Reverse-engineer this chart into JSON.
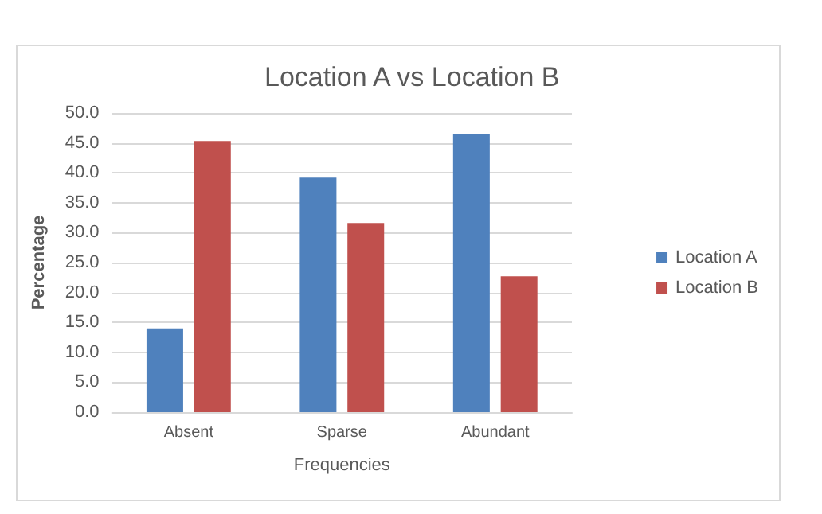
{
  "chart_data": {
    "type": "bar",
    "title": "Location A vs Location B",
    "xlabel": "Frequencies",
    "ylabel": "Percentage",
    "categories": [
      "Absent",
      "Sparse",
      "Abundant"
    ],
    "series": [
      {
        "name": "Location A",
        "color": "#4f81bd",
        "values": [
          14.0,
          39.2,
          46.5
        ]
      },
      {
        "name": "Location B",
        "color": "#c0504d",
        "values": [
          45.3,
          31.6,
          22.7
        ]
      }
    ],
    "ylim": [
      0,
      50
    ],
    "yticks": [
      {
        "value": 0,
        "label": "0.0"
      },
      {
        "value": 5,
        "label": "5.0"
      },
      {
        "value": 10,
        "label": "10.0"
      },
      {
        "value": 15,
        "label": "15.0"
      },
      {
        "value": 20,
        "label": "20.0"
      },
      {
        "value": 25,
        "label": "25.0"
      },
      {
        "value": 30,
        "label": "30.0"
      },
      {
        "value": 35,
        "label": "35.0"
      },
      {
        "value": 40,
        "label": "40.0"
      },
      {
        "value": 45,
        "label": "45.0"
      },
      {
        "value": 50,
        "label": "50.0"
      }
    ],
    "grid": "y",
    "legend": "right"
  }
}
